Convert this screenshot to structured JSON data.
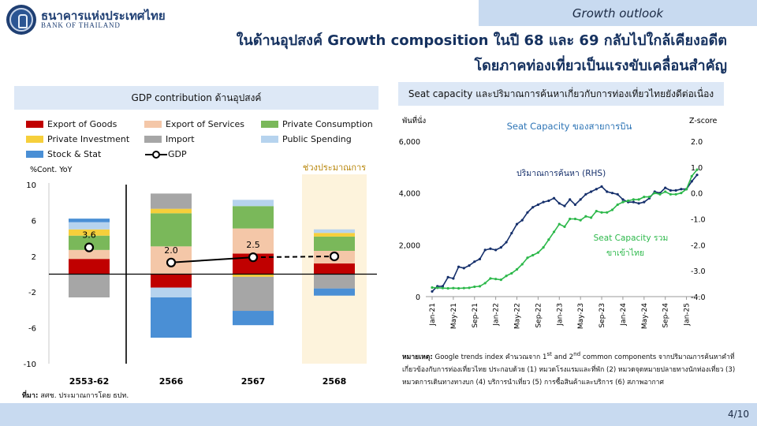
{
  "header": {
    "org_name_th": "ธนาคารแห่งประเทศไทย",
    "org_name_en": "BANK OF THAILAND",
    "topic": "Growth outlook",
    "title_line1": "ในด้านอุปสงค์ Growth composition ในปี 68 และ 69 กลับไปใกล้เคียงอดีต",
    "title_line2": "โดยภาคท่องเที่ยวเป็นแรงขับเคลื่อนสำคัญ"
  },
  "left_panel": {
    "title": "GDP contribution ด้านอุปสงค์",
    "source_label": "ที่มา:",
    "source_text": " สศช. ประมาณการโดย ธปท."
  },
  "right_panel": {
    "title": "Seat capacity และปริมาณการค้นหาเกี่ยวกับการท่องเที่ยวไทยยังดีต่อเนื่อง",
    "note_label": "หมายเหตุ:",
    "note_p1": " Google trends index คำนวณจาก 1",
    "note_sup1": "st",
    "note_p2": " and 2",
    "note_sup2": "nd",
    "note_p3": " common components จากปริมาณการค้นหาคำที่เกี่ยวข้องกับการท่องเที่ยวไทย ประกอบด้วย (1) หมวดโรงแรมและที่พัก (2) หมวดจุดหมายปลายทางนักท่องเที่ยว (3) หมวดการเดินทางทางบก (4) บริการนำเที่ยว (5) การซื้อสินค้าและบริการ (6) สภาพอากาศ"
  },
  "footer": {
    "page": "4/10"
  },
  "colors": {
    "exports_goods": "#c00000",
    "exports_services": "#f4c7a8",
    "private_consumption": "#7ab85a",
    "private_investment": "#f6cf3b",
    "import": "#a6a6a6",
    "public_spending": "#b6d3ee",
    "stock_stat": "#4a8fd5",
    "gdp_line": "#000000",
    "forecast_shade": "#fdf3dc",
    "search_line": "#152f6b",
    "seat_line": "#2cb84a"
  },
  "chart_data": [
    {
      "type": "bar",
      "subtype": "stacked",
      "ylabel": "%Cont. YoY",
      "ylim": [
        -10,
        10
      ],
      "yticks": [
        -10,
        -6,
        -2,
        2,
        6,
        10
      ],
      "categories": [
        "2553-62",
        "2566",
        "2567",
        "2568"
      ],
      "forecast_label": "ช่วงประมาณการ",
      "forecast_categories": [
        "2568"
      ],
      "series": [
        {
          "name": "Export of Goods",
          "color_key": "exports_goods",
          "values": [
            1.7,
            -1.5,
            2.3,
            1.2
          ]
        },
        {
          "name": "Export of Services",
          "color_key": "exports_services",
          "values": [
            1.0,
            3.1,
            2.8,
            1.4
          ]
        },
        {
          "name": "Private Consumption",
          "color_key": "private_consumption",
          "values": [
            1.6,
            3.7,
            2.5,
            1.6
          ]
        },
        {
          "name": "Private Investment",
          "color_key": "private_investment",
          "values": [
            0.7,
            0.5,
            -0.3,
            0.4
          ]
        },
        {
          "name": "Import",
          "color_key": "import",
          "values": [
            -2.6,
            1.7,
            -3.8,
            -1.6
          ]
        },
        {
          "name": "Public Spending",
          "color_key": "public_spending",
          "values": [
            0.8,
            -1.1,
            0.7,
            0.4
          ]
        },
        {
          "name": "Stock & Stat",
          "color_key": "stock_stat",
          "values": [
            0.4,
            -4.5,
            -1.6,
            -0.8
          ]
        }
      ],
      "gdp": {
        "name": "GDP",
        "values": [
          3.6,
          2.0,
          2.5,
          2.6
        ],
        "labels": [
          "3.6",
          "2.0",
          "2.5",
          ""
        ]
      }
    },
    {
      "type": "line",
      "title": "Seat Capacity ของสายการบิน",
      "left_axis_label": "พันที่นั่ง",
      "right_axis_label": "Z-score",
      "left_ylim": [
        0,
        6000
      ],
      "left_yticks": [
        "0",
        "2,000",
        "4,000",
        "6,000"
      ],
      "left_yvalues": [
        0,
        2000,
        4000,
        6000
      ],
      "right_ylim": [
        -4.0,
        2.0
      ],
      "right_yticks": [
        "-4.0",
        "-3.0",
        "-2.0",
        "-1.0",
        "0.0",
        "1.0",
        "2.0"
      ],
      "right_yvalues": [
        -4,
        -3,
        -2,
        -1,
        0,
        1,
        2
      ],
      "x_tick_labels": [
        "Jan-21",
        "May-21",
        "Sep-21",
        "Jan-22",
        "May-22",
        "Sep-22",
        "Jan-23",
        "May-23",
        "Sep-23",
        "Jan-24",
        "May-24",
        "Sep-24",
        "Jan-25"
      ],
      "x": [
        "Jan-21",
        "Feb-21",
        "Mar-21",
        "Apr-21",
        "May-21",
        "Jun-21",
        "Jul-21",
        "Aug-21",
        "Sep-21",
        "Oct-21",
        "Nov-21",
        "Dec-21",
        "Jan-22",
        "Feb-22",
        "Mar-22",
        "Apr-22",
        "May-22",
        "Jun-22",
        "Jul-22",
        "Aug-22",
        "Sep-22",
        "Oct-22",
        "Nov-22",
        "Dec-22",
        "Jan-23",
        "Feb-23",
        "Mar-23",
        "Apr-23",
        "May-23",
        "Jun-23",
        "Jul-23",
        "Aug-23",
        "Sep-23",
        "Oct-23",
        "Nov-23",
        "Dec-23",
        "Jan-24",
        "Feb-24",
        "Mar-24",
        "Apr-24",
        "May-24",
        "Jun-24",
        "Jul-24",
        "Aug-24",
        "Sep-24",
        "Oct-24",
        "Nov-24",
        "Dec-24",
        "Jan-25",
        "Feb-25",
        "Mar-25"
      ],
      "series": [
        {
          "name": "ปริมาณการค้นหา (RHS)",
          "axis": "right",
          "color_key": "search_line",
          "values": [
            -3.8,
            -3.6,
            -3.6,
            -3.25,
            -3.3,
            -2.85,
            -2.9,
            -2.8,
            -2.65,
            -2.55,
            -2.2,
            -2.15,
            -2.2,
            -2.1,
            -1.9,
            -1.55,
            -1.2,
            -1.05,
            -0.75,
            -0.55,
            -0.45,
            -0.35,
            -0.3,
            -0.2,
            -0.4,
            -0.5,
            -0.25,
            -0.45,
            -0.25,
            -0.05,
            0.05,
            0.15,
            0.25,
            0.05,
            0.0,
            -0.05,
            -0.25,
            -0.35,
            -0.35,
            -0.4,
            -0.35,
            -0.2,
            0.05,
            0.0,
            0.2,
            0.1,
            0.1,
            0.15,
            0.15,
            0.45,
            0.7
          ]
        },
        {
          "name": "Seat Capacity รวมขาเข้าไทย",
          "axis": "left",
          "color_key": "seat_line",
          "values": [
            350,
            340,
            330,
            320,
            330,
            320,
            330,
            340,
            380,
            400,
            520,
            700,
            680,
            650,
            800,
            900,
            1050,
            1250,
            1500,
            1600,
            1700,
            1900,
            2200,
            2500,
            2800,
            2700,
            3000,
            3000,
            2950,
            3100,
            3050,
            3300,
            3250,
            3250,
            3350,
            3550,
            3650,
            3700,
            3750,
            3750,
            3850,
            3850,
            4000,
            3950,
            4050,
            3950,
            3950,
            4000,
            4150,
            4650,
            4900
          ]
        }
      ]
    }
  ]
}
